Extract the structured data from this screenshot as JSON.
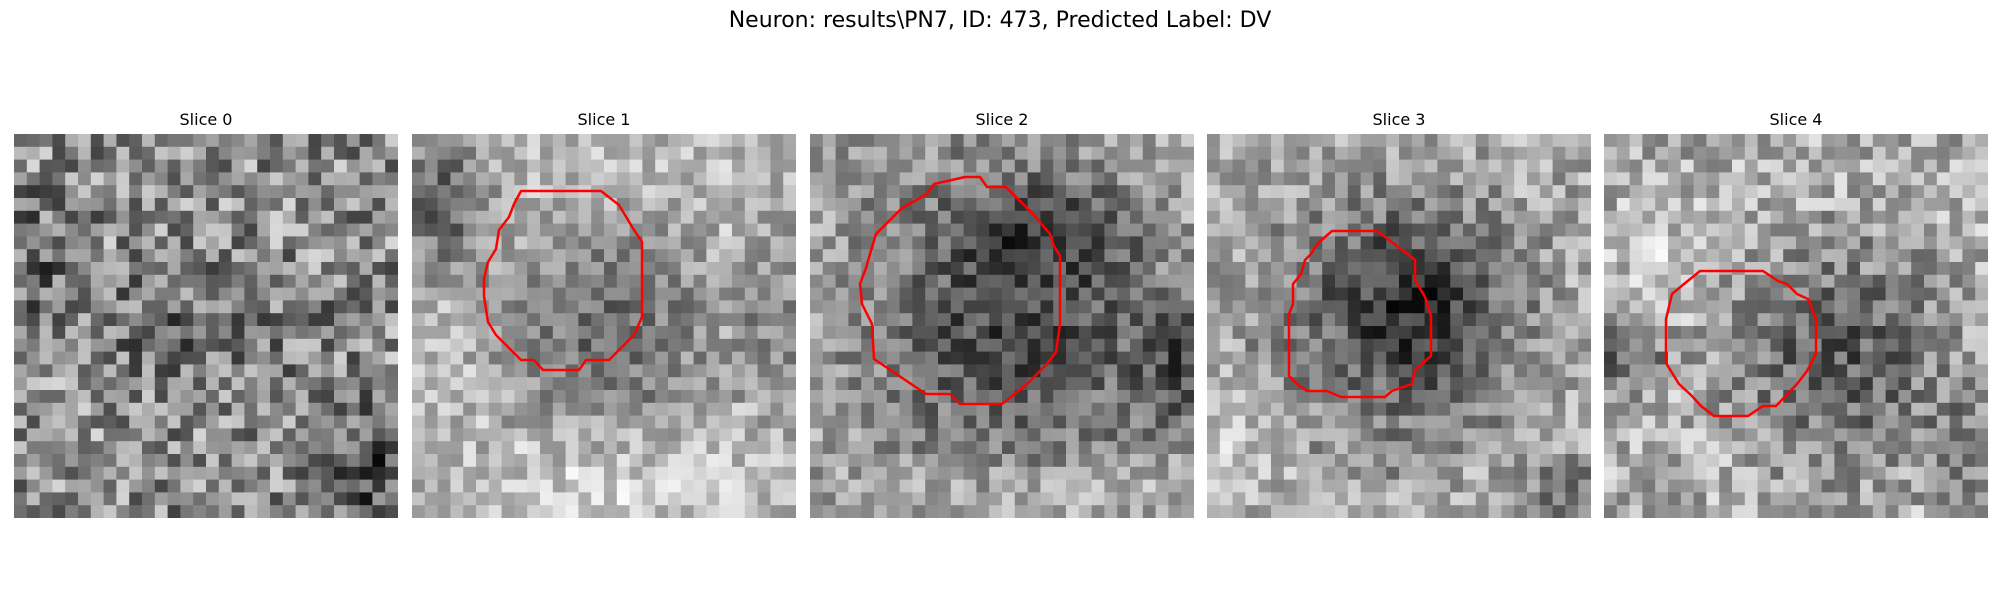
{
  "figure": {
    "title": "Neuron: results\\PN7, ID: 473, Predicted Label: DV"
  },
  "colors": {
    "contour": "#ff0000",
    "background": "#ffffff"
  },
  "slices": [
    {
      "title": "Slice 0",
      "has_contour": false
    },
    {
      "title": "Slice 1",
      "has_contour": true
    },
    {
      "title": "Slice 2",
      "has_contour": true
    },
    {
      "title": "Slice 3",
      "has_contour": true
    },
    {
      "title": "Slice 4",
      "has_contour": true
    }
  ]
}
